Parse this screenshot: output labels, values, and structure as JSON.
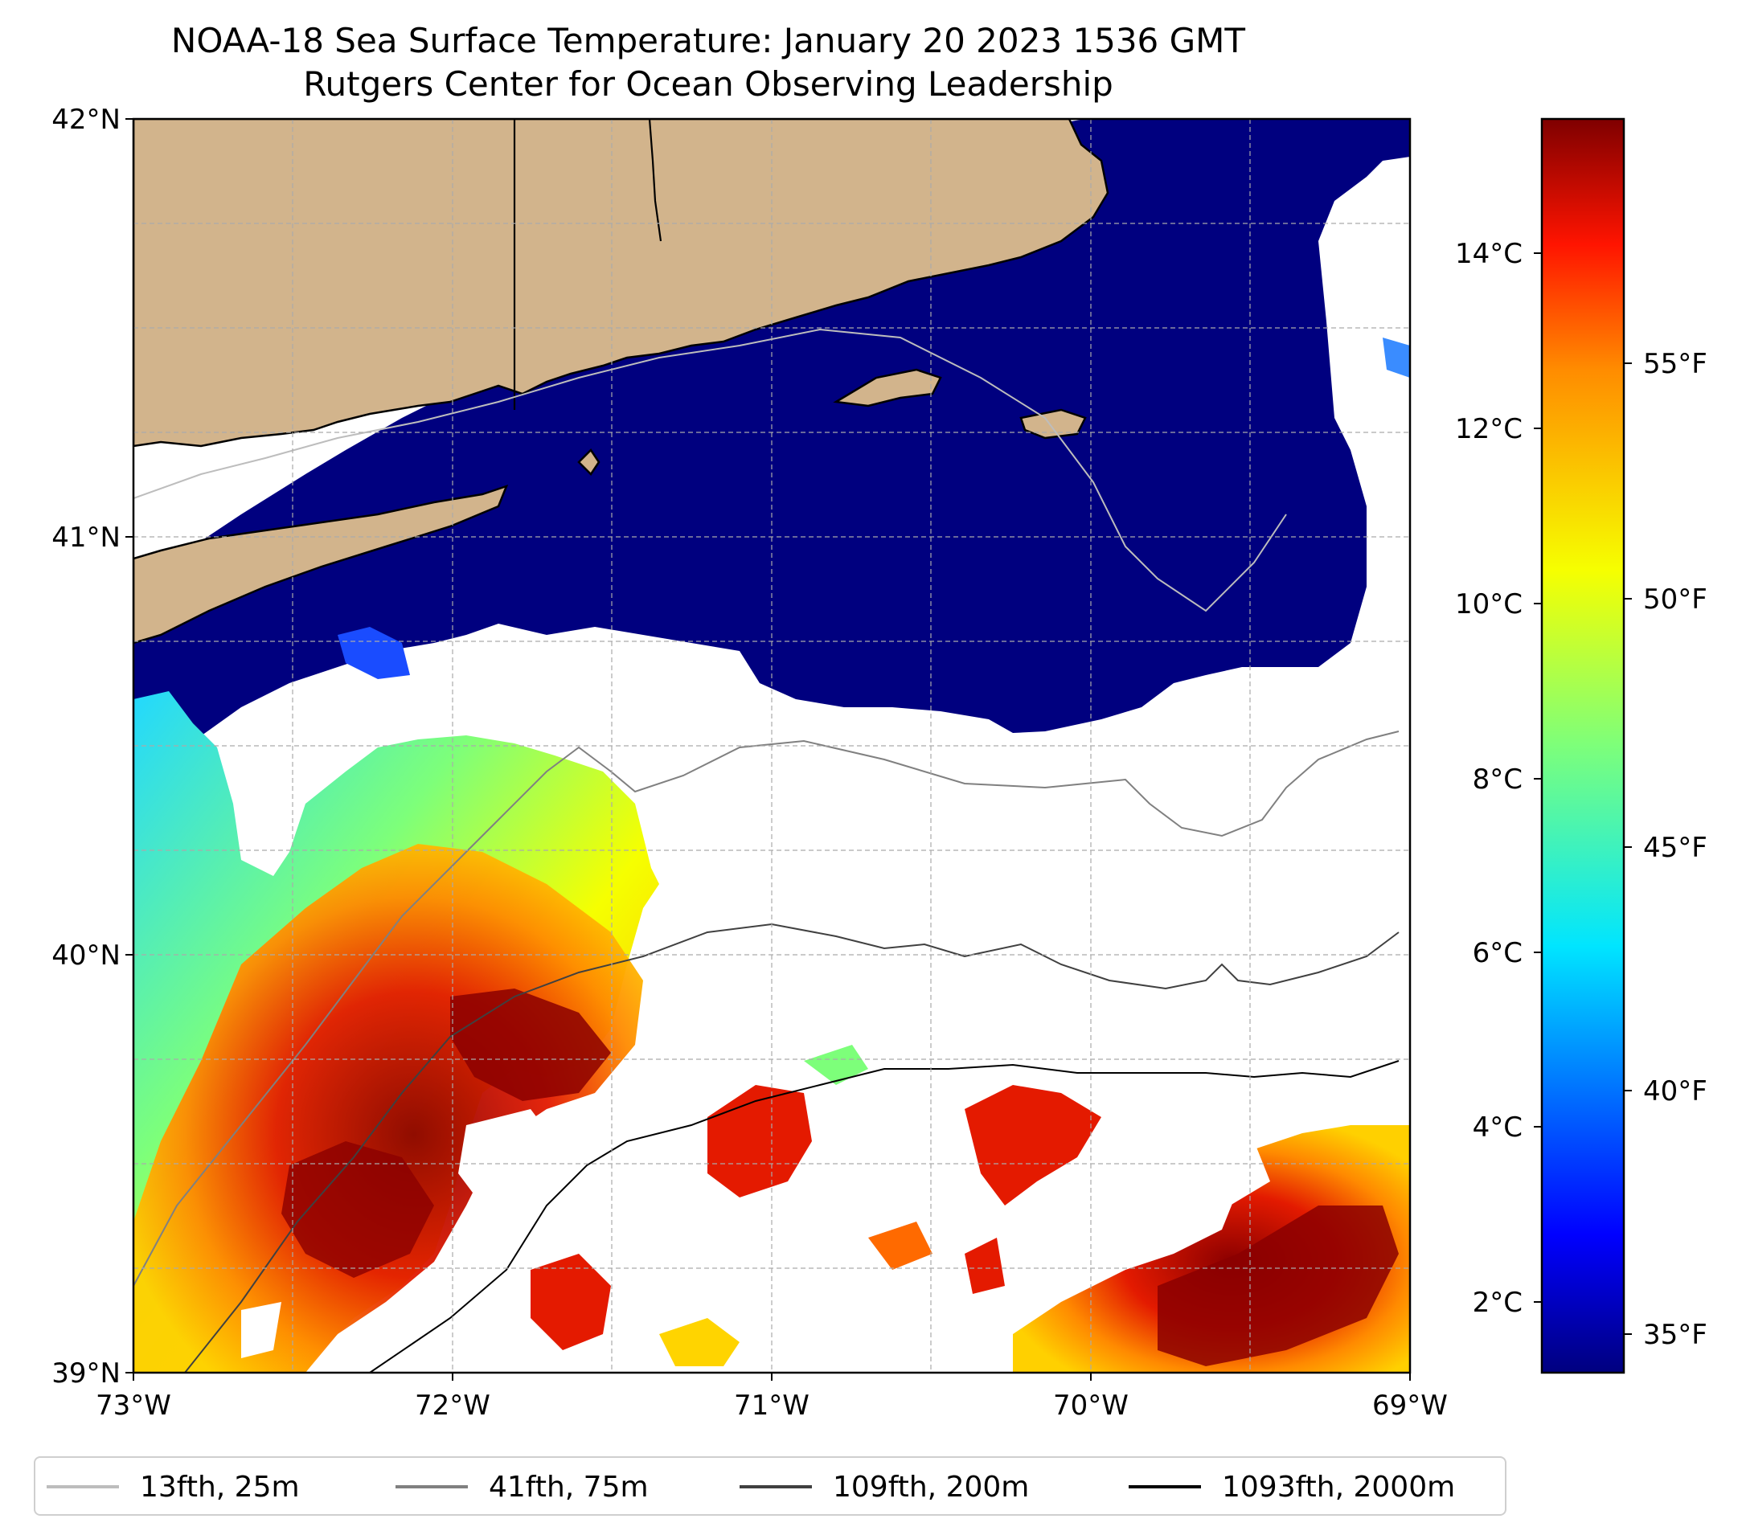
{
  "title": {
    "line1": "NOAA-18 Sea Surface Temperature: January 20 2023 1536 GMT",
    "line2": "Rutgers Center for Ocean Observing Leadership"
  },
  "map": {
    "latitude_labels": [
      "42°N",
      "41°N",
      "40°N",
      "39°N"
    ],
    "longitude_labels": [
      "73°W",
      "72°W",
      "71°W",
      "70°W",
      "69°W"
    ],
    "latitude_range": [
      39,
      42
    ],
    "longitude_range": [
      -73,
      -69
    ],
    "colors": {
      "land": "#d2b48c",
      "cold_water": "#00007f",
      "missing_data": "#ffffff",
      "coastline": "#000000"
    }
  },
  "colorbar": {
    "celsius_labels": [
      "14°C",
      "12°C",
      "10°C",
      "8°C",
      "6°C",
      "4°C",
      "2°C"
    ],
    "fahrenheit_labels": [
      "55°F",
      "50°F",
      "45°F",
      "40°F",
      "35°F"
    ],
    "colormap": "jet"
  },
  "legend": {
    "items": [
      {
        "label": "13fth, 25m",
        "color": "#bdbdbd"
      },
      {
        "label": "41fth, 75m",
        "color": "#808080"
      },
      {
        "label": "109fth, 200m",
        "color": "#404040"
      },
      {
        "label": "1093fth, 2000m",
        "color": "#000000"
      }
    ]
  }
}
